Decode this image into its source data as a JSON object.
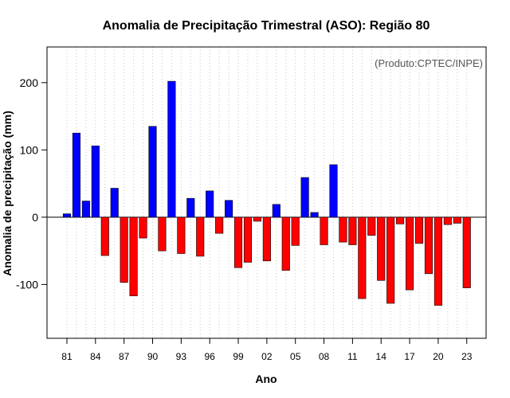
{
  "chart_data": {
    "type": "bar",
    "title": "Anomalia de Precipitação Trimestral (ASO): Região 80",
    "xlabel": "Ano",
    "ylabel": "Anomalia de precipitação (mm)",
    "credit": "(Produto:CPTEC/INPE)",
    "ylim": [
      -180,
      253
    ],
    "yticks": [
      -100,
      0,
      100,
      200
    ],
    "xtick_labels": [
      "81",
      "84",
      "87",
      "90",
      "93",
      "96",
      "99",
      "02",
      "05",
      "08",
      "11",
      "14",
      "17",
      "20",
      "23"
    ],
    "grid": "vertical dotted",
    "colors": {
      "positive": "#0000ff",
      "negative": "#ff0000",
      "border": "#000000"
    },
    "categories": [
      "1981",
      "1982",
      "1983",
      "1984",
      "1985",
      "1986",
      "1987",
      "1988",
      "1989",
      "1990",
      "1991",
      "1992",
      "1993",
      "1994",
      "1995",
      "1996",
      "1997",
      "1998",
      "1999",
      "2000",
      "2001",
      "2002",
      "2003",
      "2004",
      "2005",
      "2006",
      "2007",
      "2008",
      "2009",
      "2010",
      "2011",
      "2012",
      "2013",
      "2014",
      "2015",
      "2016",
      "2017",
      "2018",
      "2019",
      "2020",
      "2021",
      "2022",
      "2023"
    ],
    "values": [
      5,
      125,
      24,
      106,
      -57,
      43,
      -97,
      -117,
      -31,
      135,
      -50,
      202,
      -54,
      28,
      -58,
      39,
      -24,
      25,
      -75,
      -67,
      -6,
      -65,
      19,
      -79,
      -42,
      59,
      7,
      -41,
      78,
      -37,
      -41,
      -121,
      -27,
      -94,
      -128,
      -10,
      -108,
      -39,
      -84,
      -131,
      -11,
      -9,
      -105
    ]
  }
}
